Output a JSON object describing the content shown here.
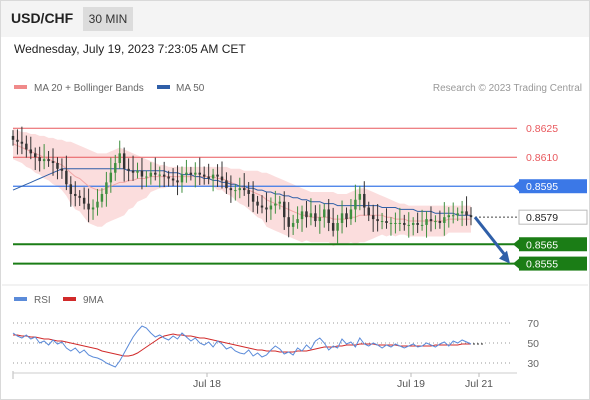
{
  "header": {
    "symbol": "USD/CHF",
    "interval": "30 MIN",
    "datetime": "Wednesday, July 19, 2023 7:23:05 AM CET"
  },
  "legend": {
    "ma20_bb": "MA 20 + Bollinger Bands",
    "ma50": "MA 50",
    "credit": "Research © 2023 Trading Central",
    "rsi": "RSI",
    "rsi_ma": "9MA"
  },
  "colors": {
    "resistance": "#e8585d",
    "pivot": "#3b78e7",
    "support": "#1b7d16",
    "bollinger_fill": "#fbdddd",
    "ma50": "#2f5fa8",
    "rsi": "#5b8bd9",
    "rsi_ma": "#d12a2a",
    "arrow": "#2f5fa8",
    "candle_up": "#3f8f3f",
    "candle_down": "#333333"
  },
  "chart_data": [
    {
      "type": "candlestick",
      "ylim": [
        0.8546,
        0.8637
      ],
      "x_ticks": [
        "Jul 18",
        "Jul 19",
        "Jul 21"
      ],
      "levels": [
        {
          "value": 0.8625,
          "label": "0.8625",
          "kind": "resistance"
        },
        {
          "value": 0.861,
          "label": "0.8610",
          "kind": "resistance"
        },
        {
          "value": 0.8595,
          "label": "0.8595",
          "kind": "pivot"
        },
        {
          "value": 0.8579,
          "label": "0.8579",
          "kind": "last"
        },
        {
          "value": 0.8565,
          "label": "0.8565",
          "kind": "support"
        },
        {
          "value": 0.8555,
          "label": "0.8555",
          "kind": "support"
        }
      ],
      "close": [
        0.8619,
        0.8618,
        0.8617,
        0.8614,
        0.8612,
        0.861,
        0.8608,
        0.8609,
        0.8608,
        0.8607,
        0.8604,
        0.8603,
        0.8596,
        0.8591,
        0.859,
        0.8589,
        0.8586,
        0.8583,
        0.8584,
        0.8587,
        0.8591,
        0.8597,
        0.8602,
        0.8607,
        0.8612,
        0.8604,
        0.8603,
        0.8602,
        0.8603,
        0.86,
        0.86,
        0.8602,
        0.8601,
        0.8601,
        0.86,
        0.8599,
        0.8598,
        0.8597,
        0.8601,
        0.8602,
        0.8601,
        0.8602,
        0.8601,
        0.86,
        0.8599,
        0.8601,
        0.86,
        0.8598,
        0.8594,
        0.8593,
        0.8593,
        0.8594,
        0.8593,
        0.8591,
        0.8587,
        0.8585,
        0.8584,
        0.8583,
        0.8585,
        0.8586,
        0.8587,
        0.8579,
        0.8574,
        0.8576,
        0.8578,
        0.8582,
        0.8579,
        0.8581,
        0.8577,
        0.8579,
        0.8583,
        0.8576,
        0.8572,
        0.8576,
        0.8581,
        0.8578,
        0.8583,
        0.8588,
        0.8591,
        0.8584,
        0.858,
        0.8578,
        0.8577,
        0.8577,
        0.8576,
        0.8576,
        0.8576,
        0.8576,
        0.8575,
        0.8575,
        0.8576,
        0.8575,
        0.8575,
        0.8578,
        0.8577,
        0.8577,
        0.8576,
        0.8579,
        0.858,
        0.858,
        0.8581,
        0.8582,
        0.858,
        0.8579
      ],
      "series": [
        {
          "name": "MA 20 + Bollinger Bands",
          "mid": [
            0.8617,
            0.8616,
            0.8615,
            0.8614,
            0.8613,
            0.8612,
            0.8611,
            0.861,
            0.8609,
            0.8608,
            0.8607,
            0.8606,
            0.8604,
            0.8602,
            0.86,
            0.8599,
            0.8597,
            0.8595,
            0.8594,
            0.8593,
            0.8593,
            0.8594,
            0.8595,
            0.8596,
            0.8597,
            0.8597,
            0.8598,
            0.8598,
            0.8599,
            0.8599,
            0.8599,
            0.86,
            0.86,
            0.86,
            0.86,
            0.86,
            0.86,
            0.86,
            0.86,
            0.86,
            0.86,
            0.86,
            0.86,
            0.86,
            0.86,
            0.86,
            0.8599,
            0.8599,
            0.8598,
            0.8597,
            0.8596,
            0.8595,
            0.8594,
            0.8593,
            0.8592,
            0.8591,
            0.859,
            0.8588,
            0.8587,
            0.8586,
            0.8585,
            0.8584,
            0.8583,
            0.8582,
            0.8581,
            0.858,
            0.858,
            0.8579,
            0.8579,
            0.8579,
            0.8579,
            0.8579,
            0.8578,
            0.8578,
            0.8578,
            0.8578,
            0.8579,
            0.8579,
            0.858,
            0.858,
            0.858,
            0.858,
            0.858,
            0.858,
            0.8579,
            0.8579,
            0.8578,
            0.8578,
            0.8578,
            0.8577,
            0.8577,
            0.8577,
            0.8577,
            0.8577,
            0.8577,
            0.8577,
            0.8577,
            0.8577,
            0.8578,
            0.8578,
            0.8578,
            0.8578,
            0.8578,
            0.8578
          ],
          "upper": [
            0.8625,
            0.8624,
            0.8623,
            0.8623,
            0.8622,
            0.8622,
            0.8621,
            0.8621,
            0.862,
            0.862,
            0.8619,
            0.8619,
            0.8618,
            0.8618,
            0.8617,
            0.8616,
            0.8615,
            0.8614,
            0.8613,
            0.8612,
            0.8612,
            0.8612,
            0.8613,
            0.8614,
            0.8615,
            0.8614,
            0.8613,
            0.8612,
            0.8611,
            0.861,
            0.8609,
            0.8608,
            0.8607,
            0.8606,
            0.8606,
            0.8605,
            0.8605,
            0.8605,
            0.8605,
            0.8605,
            0.8605,
            0.8605,
            0.8605,
            0.8605,
            0.8605,
            0.8605,
            0.8605,
            0.8605,
            0.8605,
            0.8604,
            0.8604,
            0.8604,
            0.8603,
            0.8603,
            0.8603,
            0.8603,
            0.8602,
            0.8602,
            0.8601,
            0.86,
            0.8599,
            0.8598,
            0.8597,
            0.8596,
            0.8595,
            0.8594,
            0.8593,
            0.8592,
            0.8592,
            0.8592,
            0.8592,
            0.8592,
            0.8592,
            0.8591,
            0.8591,
            0.8591,
            0.8592,
            0.8593,
            0.8594,
            0.8594,
            0.8593,
            0.8592,
            0.8591,
            0.859,
            0.8589,
            0.8588,
            0.8587,
            0.8586,
            0.8586,
            0.8585,
            0.8585,
            0.8585,
            0.8585,
            0.8585,
            0.8585,
            0.8585,
            0.8585,
            0.8585,
            0.8585,
            0.8585,
            0.8585,
            0.8585,
            0.8585,
            0.8585
          ],
          "lower": [
            0.8609,
            0.8608,
            0.8607,
            0.8605,
            0.8604,
            0.8602,
            0.8601,
            0.8599,
            0.8598,
            0.8596,
            0.8595,
            0.8593,
            0.859,
            0.8586,
            0.8583,
            0.8582,
            0.8579,
            0.8576,
            0.8575,
            0.8574,
            0.8574,
            0.8576,
            0.8577,
            0.8578,
            0.8579,
            0.858,
            0.8583,
            0.8584,
            0.8587,
            0.8588,
            0.8589,
            0.8592,
            0.8593,
            0.8594,
            0.8594,
            0.8595,
            0.8595,
            0.8595,
            0.8595,
            0.8595,
            0.8595,
            0.8595,
            0.8595,
            0.8595,
            0.8595,
            0.8595,
            0.8593,
            0.8593,
            0.8591,
            0.859,
            0.8588,
            0.8586,
            0.8585,
            0.8583,
            0.8581,
            0.8579,
            0.8578,
            0.8574,
            0.8573,
            0.8572,
            0.8571,
            0.857,
            0.8569,
            0.8568,
            0.8567,
            0.8566,
            0.8567,
            0.8566,
            0.8566,
            0.8566,
            0.8566,
            0.8566,
            0.8564,
            0.8565,
            0.8565,
            0.8565,
            0.8566,
            0.8565,
            0.8566,
            0.8566,
            0.8567,
            0.8568,
            0.8569,
            0.857,
            0.8569,
            0.857,
            0.8569,
            0.857,
            0.857,
            0.8569,
            0.8569,
            0.8569,
            0.8569,
            0.8569,
            0.8569,
            0.8569,
            0.8569,
            0.8569,
            0.8571,
            0.8571,
            0.8571,
            0.8571,
            0.8571,
            0.8571
          ]
        },
        {
          "name": "MA 50",
          "values": [
            0.8593,
            0.8594,
            0.8595,
            0.8596,
            0.8597,
            0.8598,
            0.8599,
            0.86,
            0.8601,
            0.8602,
            0.8603,
            0.8604,
            0.8604,
            0.8604,
            0.8604,
            0.8604,
            0.8604,
            0.8604,
            0.8604,
            0.8604,
            0.8604,
            0.8604,
            0.8604,
            0.8604,
            0.8604,
            0.8604,
            0.8603,
            0.8603,
            0.8603,
            0.8603,
            0.8603,
            0.8603,
            0.8603,
            0.8603,
            0.8603,
            0.8602,
            0.8602,
            0.8602,
            0.8601,
            0.8601,
            0.8601,
            0.86,
            0.86,
            0.8599,
            0.8599,
            0.8598,
            0.8598,
            0.8597,
            0.8597,
            0.8596,
            0.8596,
            0.8595,
            0.8595,
            0.8594,
            0.8594,
            0.8593,
            0.8593,
            0.8592,
            0.8592,
            0.8591,
            0.8591,
            0.859,
            0.859,
            0.8589,
            0.8589,
            0.8588,
            0.8588,
            0.8587,
            0.8587,
            0.8587,
            0.8586,
            0.8586,
            0.8586,
            0.8585,
            0.8585,
            0.8585,
            0.8585,
            0.8585,
            0.8585,
            0.8585,
            0.8585,
            0.8585,
            0.8585,
            0.8584,
            0.8584,
            0.8584,
            0.8584,
            0.8583,
            0.8583,
            0.8583,
            0.8583,
            0.8582,
            0.8582,
            0.8582,
            0.8582,
            0.8581,
            0.8581,
            0.8581,
            0.8581,
            0.8581,
            0.858,
            0.858,
            0.858,
            0.858
          ]
        }
      ],
      "forecast": {
        "from": 0.8579,
        "to": 0.8555
      }
    },
    {
      "type": "line",
      "ylim": [
        20,
        80
      ],
      "y_ticks": [
        70,
        50,
        30
      ],
      "series": [
        {
          "name": "RSI",
          "values": [
            60,
            57,
            55,
            58,
            54,
            56,
            50,
            52,
            48,
            53,
            49,
            51,
            45,
            42,
            45,
            40,
            43,
            38,
            36,
            35,
            33,
            30,
            28,
            26,
            32,
            40,
            48,
            56,
            62,
            67,
            65,
            60,
            56,
            58,
            55,
            53,
            57,
            54,
            60,
            56,
            52,
            55,
            50,
            48,
            51,
            46,
            52,
            49,
            44,
            46,
            42,
            40,
            39,
            43,
            37,
            40,
            36,
            38,
            43,
            47,
            44,
            39,
            41,
            38,
            45,
            42,
            48,
            44,
            52,
            55,
            50,
            43,
            47,
            45,
            54,
            49,
            51,
            46,
            55,
            49,
            47,
            50,
            48,
            45,
            48,
            46,
            49,
            47,
            45,
            47,
            49,
            46,
            47,
            50,
            48,
            46,
            49,
            51,
            47,
            52,
            50,
            53,
            51,
            49
          ]
        },
        {
          "name": "9MA",
          "values": [
            58,
            58,
            57,
            57,
            56,
            56,
            55,
            54,
            54,
            53,
            52,
            52,
            51,
            50,
            49,
            48,
            47,
            46,
            45,
            44,
            42,
            41,
            40,
            39,
            38,
            37,
            37,
            38,
            40,
            43,
            46,
            49,
            52,
            55,
            57,
            58,
            59,
            58,
            58,
            57,
            57,
            56,
            55,
            55,
            54,
            53,
            52,
            51,
            50,
            49,
            48,
            47,
            46,
            45,
            44,
            43,
            43,
            42,
            42,
            42,
            41,
            41,
            41,
            41,
            42,
            42,
            42,
            43,
            44,
            45,
            46,
            46,
            46,
            47,
            47,
            48,
            48,
            48,
            49,
            49,
            49,
            49,
            48,
            48,
            48,
            48,
            48,
            47,
            47,
            47,
            47,
            47,
            47,
            47,
            47,
            48,
            48,
            48,
            48,
            48,
            48,
            49,
            49,
            49
          ]
        }
      ]
    }
  ]
}
